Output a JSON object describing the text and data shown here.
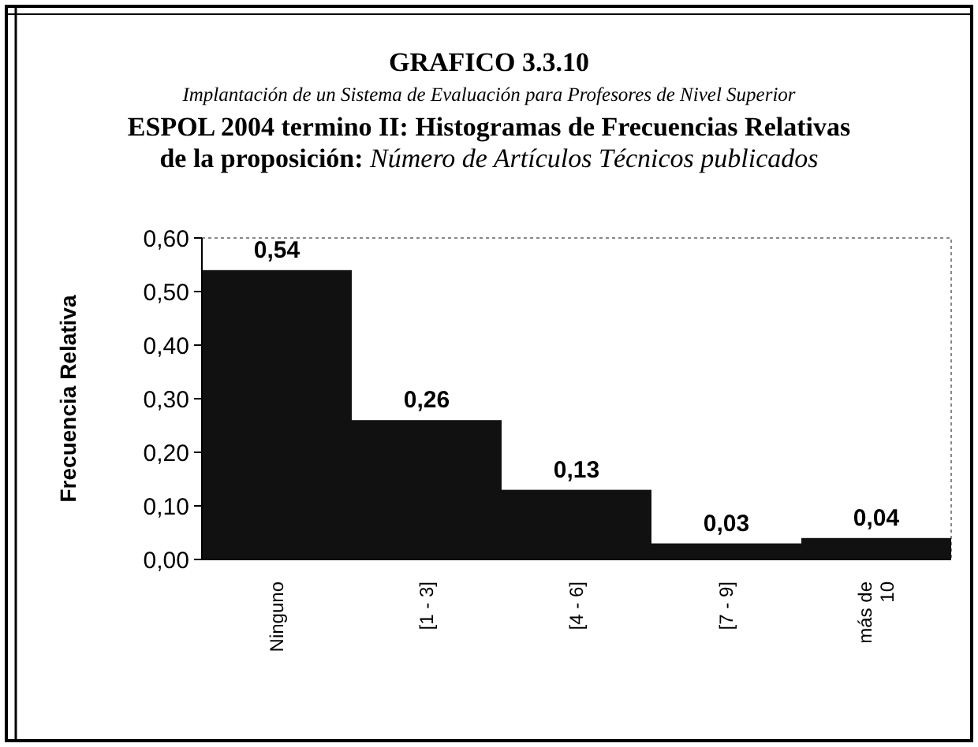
{
  "chart_data": {
    "type": "bar",
    "title": "GRAFICO 3.3.10",
    "subtitle": "Implantación de un Sistema de Evaluación para Profesores de Nivel Superior",
    "annotations": [
      "ESPOL 2004 termino II: Histogramas de Frecuencias Relativas",
      "de la proposición: Número de Artículos Técnicos publicados"
    ],
    "ylabel": "Frecuencia Relativa",
    "categories": [
      "Ninguno",
      "[1 - 3]",
      "[4 - 6]",
      "[7 - 9]",
      "más de 10"
    ],
    "values": [
      0.54,
      0.26,
      0.13,
      0.03,
      0.04
    ],
    "value_labels": [
      "0,54",
      "0,26",
      "0,13",
      "0,03",
      "0,04"
    ],
    "color": "#111111",
    "ylim": [
      0,
      0.6
    ],
    "yticks": [
      {
        "value": 0,
        "label": "0,00"
      },
      {
        "value": 0.1,
        "label": "0,10"
      },
      {
        "value": 0.2,
        "label": "0,20"
      },
      {
        "value": 0.3,
        "label": "0,30"
      },
      {
        "value": 0.4,
        "label": "0,40"
      },
      {
        "value": 0.5,
        "label": "0,50"
      },
      {
        "value": 0.6,
        "label": "0,60"
      }
    ],
    "grid": false
  }
}
